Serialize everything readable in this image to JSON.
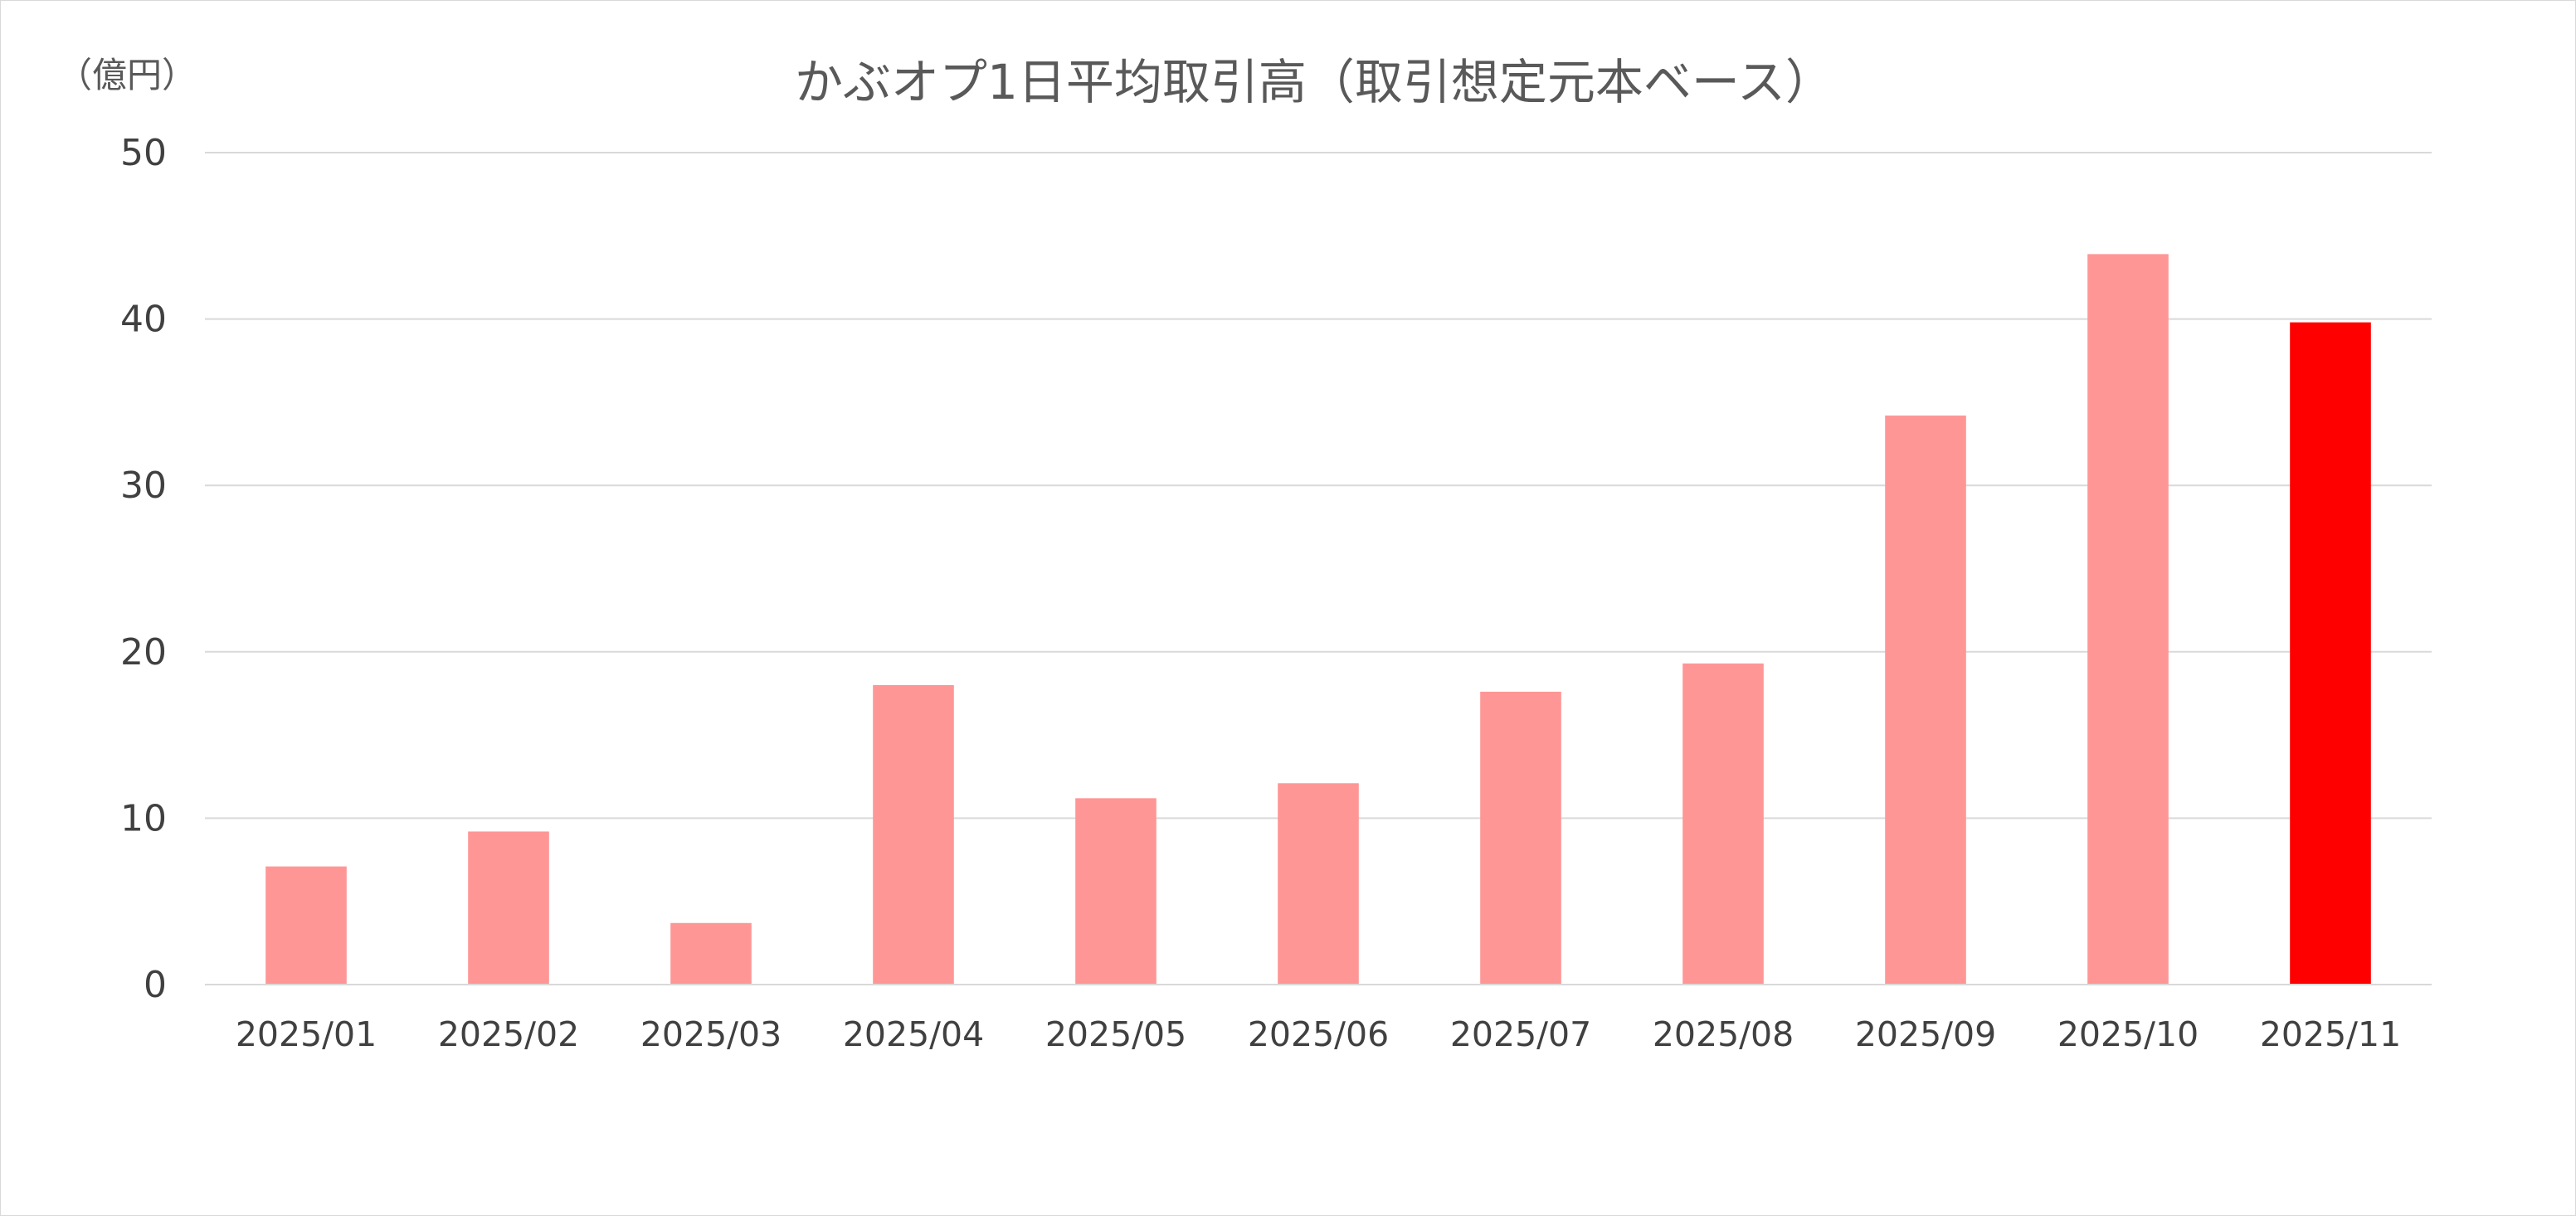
{
  "chart_data": {
    "type": "bar",
    "title": "かぶオプ1日平均取引高（取引想定元本ベース）",
    "unit_label": "（億円）",
    "xlabel": "",
    "ylabel": "",
    "ylim": [
      0,
      50
    ],
    "yticks": [
      "0",
      "10",
      "20",
      "30",
      "40",
      "50"
    ],
    "grid": true,
    "legend": "none",
    "categories": [
      "2025/01",
      "2025/02",
      "2025/03",
      "2025/04",
      "2025/05",
      "2025/06",
      "2025/07",
      "2025/08",
      "2025/09",
      "2025/10",
      "2025/11"
    ],
    "values": [
      7.1,
      9.2,
      3.7,
      18.0,
      11.2,
      12.1,
      17.6,
      19.3,
      34.2,
      43.9,
      39.8
    ],
    "colors": {
      "bar": "#ff9696",
      "highlight": "#ff0000"
    },
    "highlight_index": 10
  }
}
